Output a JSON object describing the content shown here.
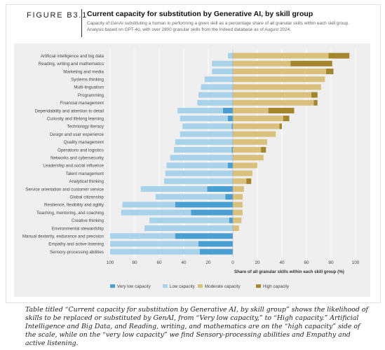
{
  "header": {
    "figure_label": "FIGURE B3.1",
    "title": "Current capacity for substitution by Generative AI, by skill group",
    "subtitle": "Capacity of GenAI substituting a human in performing a given skill as a percentage share of all granular skills within each skill group. Analysis based on GPT-4o, with over 2800 granular skills from the Indeed database as of August 2024."
  },
  "chart_data": {
    "type": "bar",
    "orientation": "horizontal-diverging",
    "xlabel": "Share of all granular skills within each skill group (%)",
    "xlim": [
      -100,
      100
    ],
    "x_ticks": [
      "100",
      "80",
      "60",
      "40",
      "20",
      "0",
      "20",
      "40",
      "60",
      "80",
      "100"
    ],
    "grid": true,
    "legend_position": "bottom",
    "colors": {
      "very_low": "#4a9fd2",
      "low": "#a8d1ea",
      "moderate": "#d9c07c",
      "high": "#a3862e"
    },
    "categories": [
      "Artificial intelligence and big data",
      "Reading, writing and mathematics",
      "Marketing and media",
      "Systems thinking",
      "Multi-lingualism",
      "Programming",
      "Financial management",
      "Dependability and attention to detail",
      "Curiosity and lifelong learning",
      "Technology literacy",
      "Design and user experience",
      "Quality management",
      "Operations and logistics",
      "Networks and cybersecurity",
      "Leadership and social influence",
      "Talent management",
      "Analytical thinking",
      "Service orientation and customer service",
      "Global citizenship",
      "Resilience, flexibility and agility",
      "Teaching, mentoring, and coaching",
      "Creative thinking",
      "Environmental stewardship",
      "Manual dexterity, endurance and precision",
      "Empathy and active listening",
      "Sensory-processing abilities"
    ],
    "series": [
      {
        "name": "Very low capacity",
        "key": "very_low",
        "side": "left",
        "values": [
          0,
          0,
          0,
          0,
          0,
          0,
          0,
          8,
          4,
          1,
          0,
          0,
          1,
          0,
          4,
          0,
          0,
          21,
          6,
          47,
          34,
          3,
          0,
          47,
          28,
          27
        ]
      },
      {
        "name": "Low capacity",
        "key": "low",
        "side": "left",
        "values": [
          4,
          17,
          17,
          23,
          26,
          28,
          29,
          37,
          39,
          40,
          43,
          47,
          47,
          51,
          50,
          55,
          56,
          54,
          57,
          43,
          57,
          65,
          72,
          53,
          72,
          73
        ]
      },
      {
        "name": "Moderate capacity",
        "key": "moderate",
        "side": "right",
        "values": [
          78,
          47,
          76,
          75,
          72,
          64,
          66,
          29,
          41,
          38,
          35,
          28,
          23,
          25,
          20,
          16,
          11,
          9,
          8,
          8,
          8,
          7,
          5,
          0,
          0,
          0
        ]
      },
      {
        "name": "High capacity",
        "key": "high",
        "side": "right",
        "values": [
          17,
          34,
          6,
          0,
          0,
          5,
          3,
          21,
          5,
          2,
          0,
          0,
          4,
          0,
          0,
          0,
          4,
          0,
          0,
          0,
          0,
          0,
          0,
          0,
          0,
          0
        ]
      }
    ]
  },
  "caption": "Table titled “Current capacity for substitution by Generative AI, by skill group” shows the likelihood of skills to be replaced or substituted by GenAI, from “Very low capacity,” to “High capacity.” Artificial Intelligence and Big Data, and Reading, writing, and mathematics are on the “high capacity” side of the scale, while on the “very low capacity” we find Sensory-processing abilities and Empathy and active listening."
}
